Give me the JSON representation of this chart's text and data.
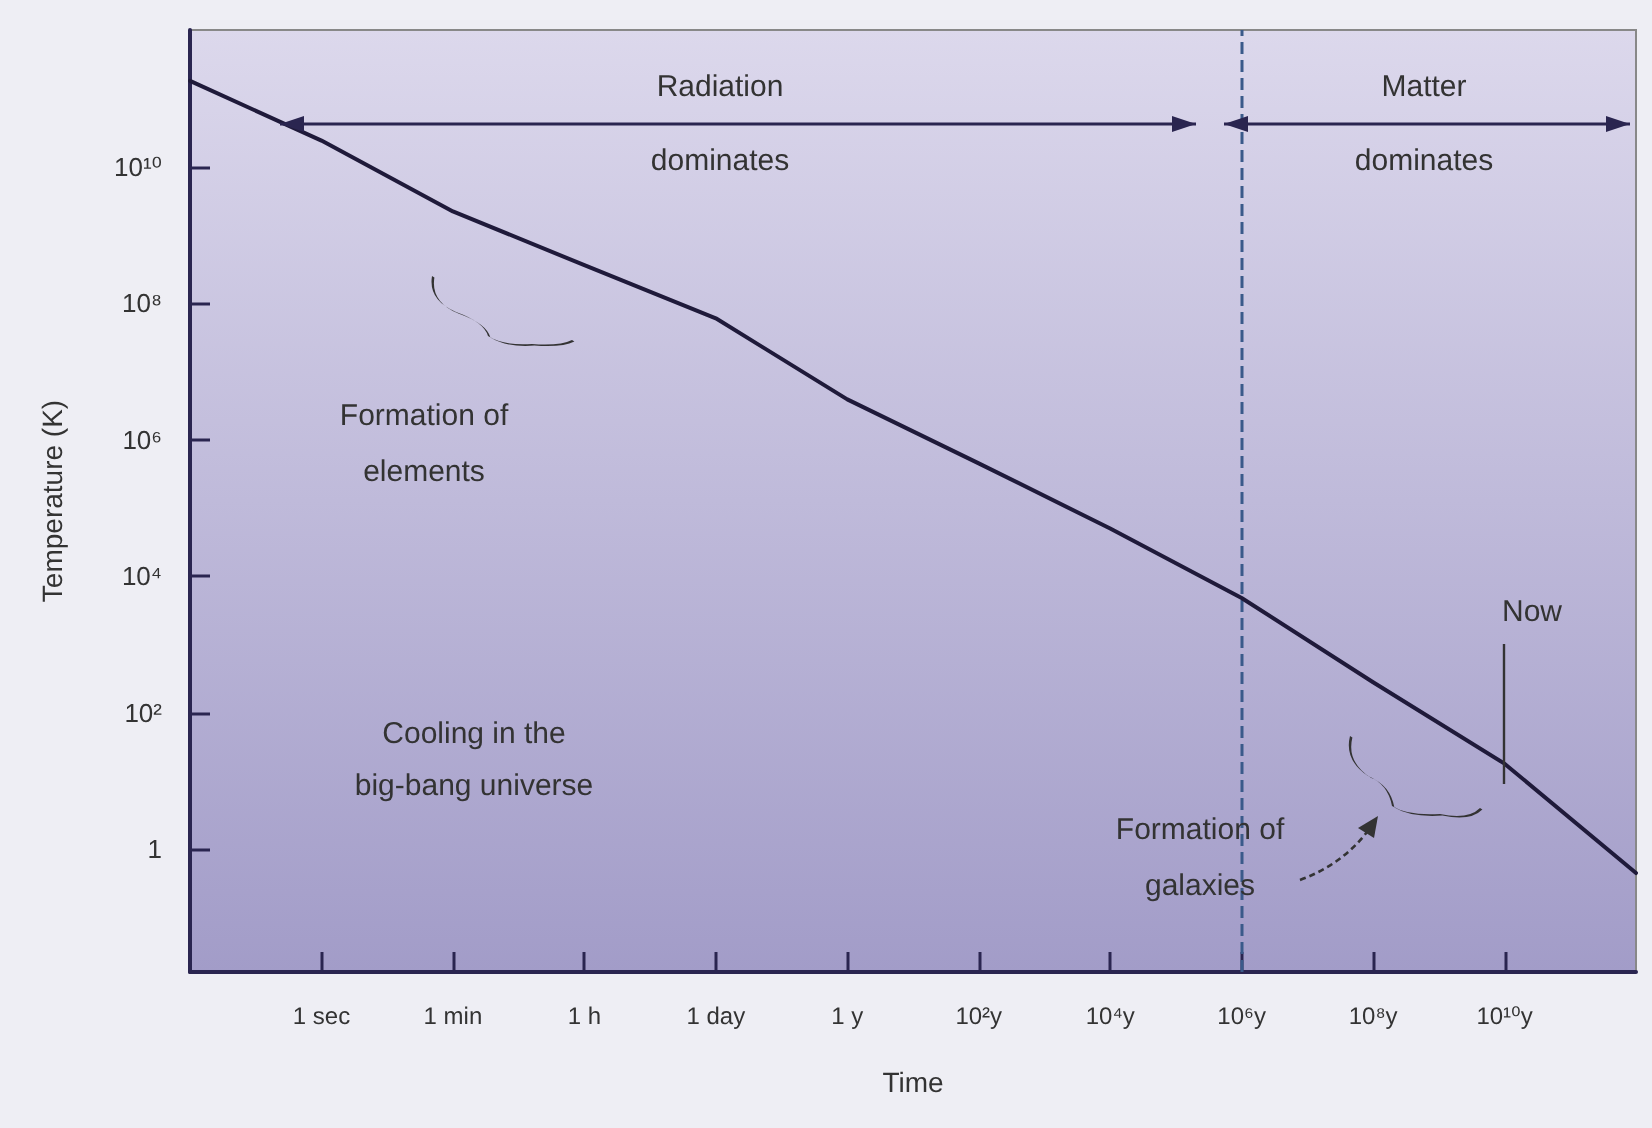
{
  "chart_data": {
    "type": "line",
    "xlabel": "Time",
    "ylabel": "Temperature (K)",
    "categories": [
      null,
      "1 sec",
      "1 min",
      "1 h",
      "1 day",
      "1 y",
      "10²y",
      "10⁴y",
      "10⁶y",
      "10⁸y",
      "10¹⁰y",
      null
    ],
    "series": [
      {
        "color": "#1f1a3a",
        "values": [
          180000000000.0,
          24000000000.0,
          2200000000.0,
          360000000.0,
          60000000.0,
          3900000.0,
          450000.0,
          50000.0,
          4800,
          280,
          18,
          0.45
        ]
      }
    ],
    "log": "y",
    "grid": false,
    "marker": "none",
    "line_style": "solid",
    "ylim": [
      0.016,
      1000000000000.0
    ],
    "yticks": [
      {
        "value": 1,
        "label": "1"
      },
      {
        "value": 100,
        "label": "10²"
      },
      {
        "value": 10000,
        "label": "10⁴"
      },
      {
        "value": 1000000,
        "label": "10⁶"
      },
      {
        "value": 100000000,
        "label": "10⁸"
      },
      {
        "value": 10000000000,
        "label": "10¹⁰"
      }
    ],
    "ref_lines": [
      {
        "axis": "x",
        "value": "10⁶y",
        "color": "#3a5a8a",
        "line_style": "dashed"
      }
    ],
    "annotations": [
      "Radiation dominates",
      "Matter dominates",
      "Formation of elements",
      "Cooling in the big-bang universe",
      "Formation of galaxies",
      "Now"
    ]
  }
}
